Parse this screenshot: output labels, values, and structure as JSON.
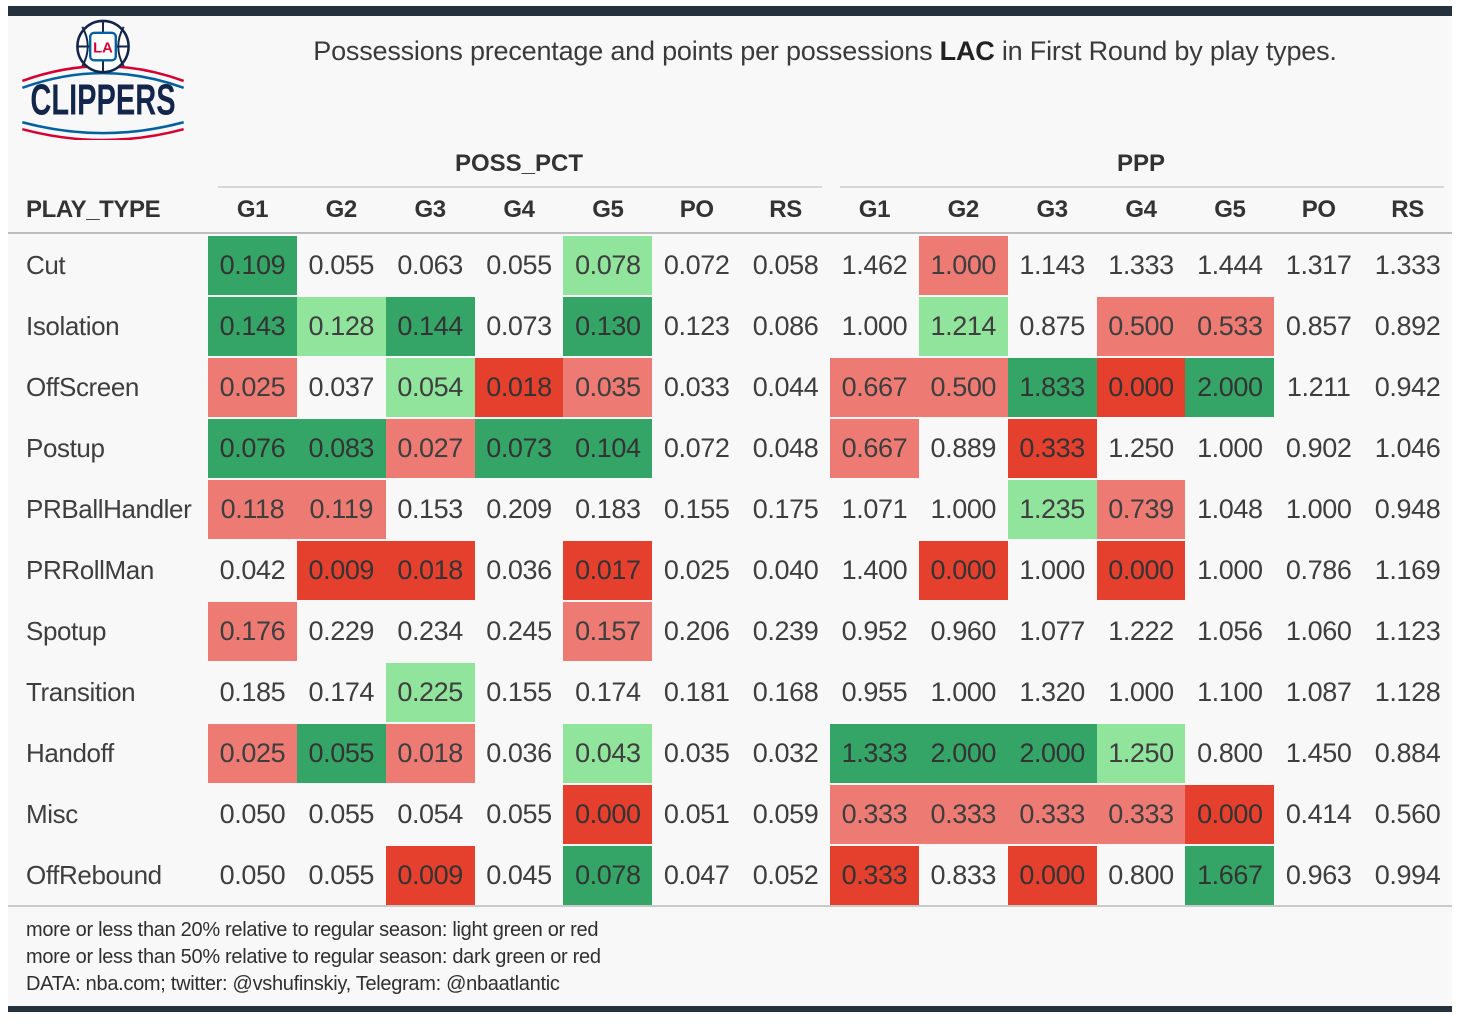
{
  "colors": {
    "navy": "#25323e",
    "dark_green": "#35a567",
    "light_green": "#90e49c",
    "light_red": "#ee7b73",
    "dark_red": "#e5402e",
    "logo_navy": "#13254a",
    "logo_red": "#d50032",
    "logo_blue": "#0061a1"
  },
  "header": {
    "title_prefix": "Possessions precentage and points per possessions ",
    "title_team": "LAC",
    "title_suffix": " in First Round by play types.",
    "logo_wordmark": "CLIPPERS",
    "logo_monogram": "LA"
  },
  "chart_data": {
    "type": "table",
    "title": "Possessions precentage and points per possessions LAC in First Round by play types.",
    "row_header": "PLAY_TYPE",
    "column_groups": [
      "POSS_PCT",
      "PPP"
    ],
    "columns": [
      "G1",
      "G2",
      "G3",
      "G4",
      "G5",
      "PO",
      "RS"
    ],
    "highlight_codes": {
      "dg": "dark_green",
      "lg": "light_green",
      "lr": "light_red",
      "dr": "dark_red"
    },
    "rows": [
      {
        "play_type": "Cut",
        "poss_pct": [
          "0.109",
          "0.055",
          "0.063",
          "0.055",
          "0.078",
          "0.072",
          "0.058"
        ],
        "poss_hl": [
          "dg",
          "",
          "",
          "",
          "lg",
          "",
          ""
        ],
        "ppp": [
          "1.462",
          "1.000",
          "1.143",
          "1.333",
          "1.444",
          "1.317",
          "1.333"
        ],
        "ppp_hl": [
          "",
          "lr",
          "",
          "",
          "",
          "",
          ""
        ]
      },
      {
        "play_type": "Isolation",
        "poss_pct": [
          "0.143",
          "0.128",
          "0.144",
          "0.073",
          "0.130",
          "0.123",
          "0.086"
        ],
        "poss_hl": [
          "dg",
          "lg",
          "dg",
          "",
          "dg",
          "",
          ""
        ],
        "ppp": [
          "1.000",
          "1.214",
          "0.875",
          "0.500",
          "0.533",
          "0.857",
          "0.892"
        ],
        "ppp_hl": [
          "",
          "lg",
          "",
          "lr",
          "lr",
          "",
          ""
        ]
      },
      {
        "play_type": "OffScreen",
        "poss_pct": [
          "0.025",
          "0.037",
          "0.054",
          "0.018",
          "0.035",
          "0.033",
          "0.044"
        ],
        "poss_hl": [
          "lr",
          "",
          "lg",
          "dr",
          "lr",
          "",
          ""
        ],
        "ppp": [
          "0.667",
          "0.500",
          "1.833",
          "0.000",
          "2.000",
          "1.211",
          "0.942"
        ],
        "ppp_hl": [
          "lr",
          "lr",
          "dg",
          "dr",
          "dg",
          "",
          ""
        ]
      },
      {
        "play_type": "Postup",
        "poss_pct": [
          "0.076",
          "0.083",
          "0.027",
          "0.073",
          "0.104",
          "0.072",
          "0.048"
        ],
        "poss_hl": [
          "dg",
          "dg",
          "lr",
          "dg",
          "dg",
          "",
          ""
        ],
        "ppp": [
          "0.667",
          "0.889",
          "0.333",
          "1.250",
          "1.000",
          "0.902",
          "1.046"
        ],
        "ppp_hl": [
          "lr",
          "",
          "dr",
          "",
          "",
          "",
          ""
        ]
      },
      {
        "play_type": "PRBallHandler",
        "poss_pct": [
          "0.118",
          "0.119",
          "0.153",
          "0.209",
          "0.183",
          "0.155",
          "0.175"
        ],
        "poss_hl": [
          "lr",
          "lr",
          "",
          "",
          "",
          "",
          ""
        ],
        "ppp": [
          "1.071",
          "1.000",
          "1.235",
          "0.739",
          "1.048",
          "1.000",
          "0.948"
        ],
        "ppp_hl": [
          "",
          "",
          "lg",
          "lr",
          "",
          "",
          ""
        ]
      },
      {
        "play_type": "PRRollMan",
        "poss_pct": [
          "0.042",
          "0.009",
          "0.018",
          "0.036",
          "0.017",
          "0.025",
          "0.040"
        ],
        "poss_hl": [
          "",
          "dr",
          "dr",
          "",
          "dr",
          "",
          ""
        ],
        "ppp": [
          "1.400",
          "0.000",
          "1.000",
          "0.000",
          "1.000",
          "0.786",
          "1.169"
        ],
        "ppp_hl": [
          "",
          "dr",
          "",
          "dr",
          "",
          "",
          ""
        ]
      },
      {
        "play_type": "Spotup",
        "poss_pct": [
          "0.176",
          "0.229",
          "0.234",
          "0.245",
          "0.157",
          "0.206",
          "0.239"
        ],
        "poss_hl": [
          "lr",
          "",
          "",
          "",
          "lr",
          "",
          ""
        ],
        "ppp": [
          "0.952",
          "0.960",
          "1.077",
          "1.222",
          "1.056",
          "1.060",
          "1.123"
        ],
        "ppp_hl": [
          "",
          "",
          "",
          "",
          "",
          "",
          ""
        ]
      },
      {
        "play_type": "Transition",
        "poss_pct": [
          "0.185",
          "0.174",
          "0.225",
          "0.155",
          "0.174",
          "0.181",
          "0.168"
        ],
        "poss_hl": [
          "",
          "",
          "lg",
          "",
          "",
          "",
          ""
        ],
        "ppp": [
          "0.955",
          "1.000",
          "1.320",
          "1.000",
          "1.100",
          "1.087",
          "1.128"
        ],
        "ppp_hl": [
          "",
          "",
          "",
          "",
          "",
          "",
          ""
        ]
      },
      {
        "play_type": "Handoff",
        "poss_pct": [
          "0.025",
          "0.055",
          "0.018",
          "0.036",
          "0.043",
          "0.035",
          "0.032"
        ],
        "poss_hl": [
          "lr",
          "dg",
          "lr",
          "",
          "lg",
          "",
          ""
        ],
        "ppp": [
          "1.333",
          "2.000",
          "2.000",
          "1.250",
          "0.800",
          "1.450",
          "0.884"
        ],
        "ppp_hl": [
          "dg",
          "dg",
          "dg",
          "lg",
          "",
          "",
          ""
        ]
      },
      {
        "play_type": "Misc",
        "poss_pct": [
          "0.050",
          "0.055",
          "0.054",
          "0.055",
          "0.000",
          "0.051",
          "0.059"
        ],
        "poss_hl": [
          "",
          "",
          "",
          "",
          "dr",
          "",
          ""
        ],
        "ppp": [
          "0.333",
          "0.333",
          "0.333",
          "0.333",
          "0.000",
          "0.414",
          "0.560"
        ],
        "ppp_hl": [
          "lr",
          "lr",
          "lr",
          "lr",
          "dr",
          "",
          ""
        ]
      },
      {
        "play_type": "OffRebound",
        "poss_pct": [
          "0.050",
          "0.055",
          "0.009",
          "0.045",
          "0.078",
          "0.047",
          "0.052"
        ],
        "poss_hl": [
          "",
          "",
          "dr",
          "",
          "dg",
          "",
          ""
        ],
        "ppp": [
          "0.333",
          "0.833",
          "0.000",
          "0.800",
          "1.667",
          "0.963",
          "0.994"
        ],
        "ppp_hl": [
          "dr",
          "",
          "dr",
          "",
          "dg",
          "",
          ""
        ]
      }
    ]
  },
  "footer": {
    "note_20": "more or less than 20% relative to regular season: light green or red",
    "note_50": "more or less than 50% relative to regular season: dark green or red",
    "source": "DATA: nba.com; twitter: @vshufinskiy, Telegram: @nbaatlantic"
  }
}
